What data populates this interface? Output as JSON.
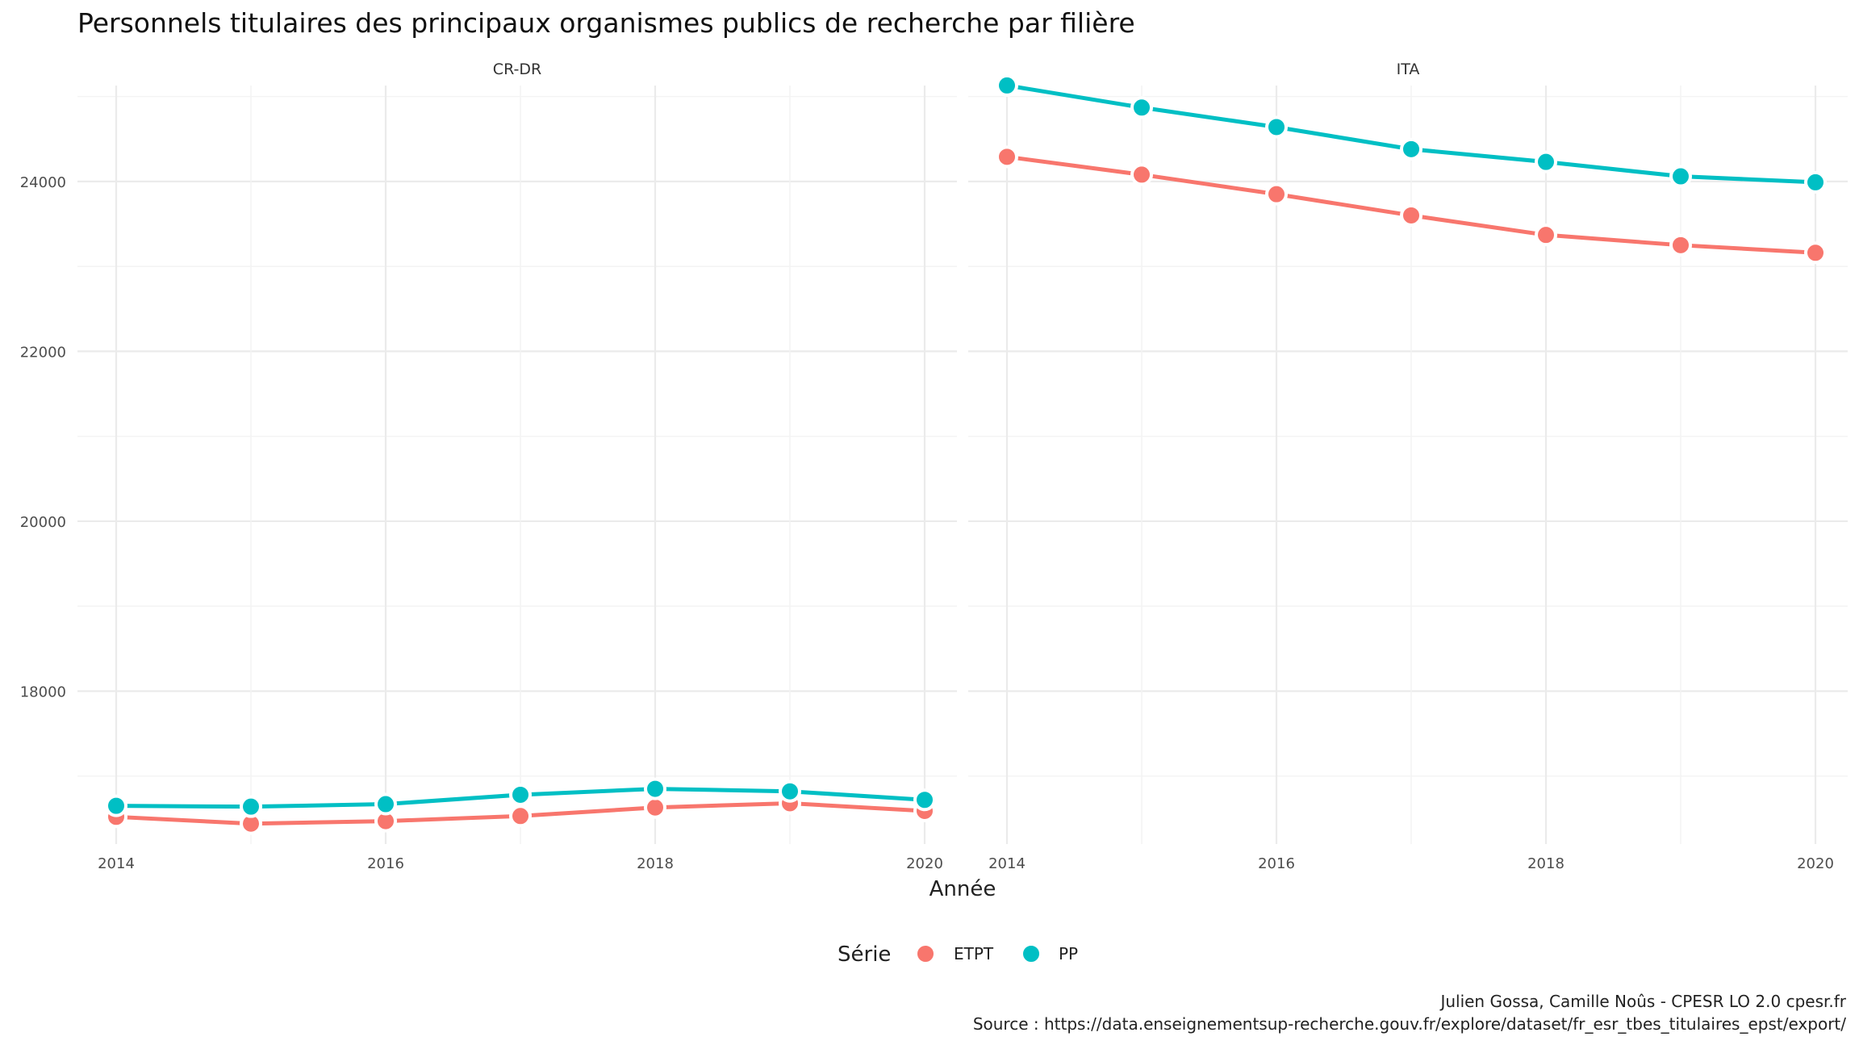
{
  "chart_data": {
    "type": "line",
    "title": "Personnels titulaires des principaux organismes publics de recherche par filière",
    "xlabel": "Année",
    "ylabel": "",
    "x": [
      2014,
      2015,
      2016,
      2017,
      2018,
      2019,
      2020
    ],
    "x_ticks": [
      "2014",
      "2016",
      "2018",
      "2020"
    ],
    "xlim": [
      2014,
      2020
    ],
    "y_ticks": [
      "18000",
      "20000",
      "22000",
      "24000"
    ],
    "ylim": [
      16200,
      25300
    ],
    "grid": true,
    "legend": {
      "title": "Série",
      "position": "bottom",
      "entries": [
        "ETPT",
        "PP"
      ]
    },
    "series_colors": {
      "ETPT": "#F8766D",
      "PP": "#00BFC4"
    },
    "facets": [
      {
        "label": "CR-DR",
        "series": [
          {
            "name": "ETPT",
            "values": [
              16520,
              16440,
              16470,
              16530,
              16630,
              16680,
              16590
            ]
          },
          {
            "name": "PP",
            "values": [
              16650,
              16640,
              16670,
              16780,
              16850,
              16820,
              16720
            ]
          }
        ]
      },
      {
        "label": "ITA",
        "series": [
          {
            "name": "ETPT",
            "values": [
              24290,
              24080,
              23850,
              23600,
              23370,
              23250,
              23160
            ]
          },
          {
            "name": "PP",
            "values": [
              25130,
              24870,
              24640,
              24380,
              24230,
              24060,
              23990
            ]
          }
        ]
      }
    ],
    "caption": [
      "Julien Gossa, Camille Noûs - CPESR LO 2.0 cpesr.fr",
      "Source : https://data.enseignementsup-recherche.gouv.fr/explore/dataset/fr_esr_tbes_titulaires_epst/export/"
    ]
  }
}
